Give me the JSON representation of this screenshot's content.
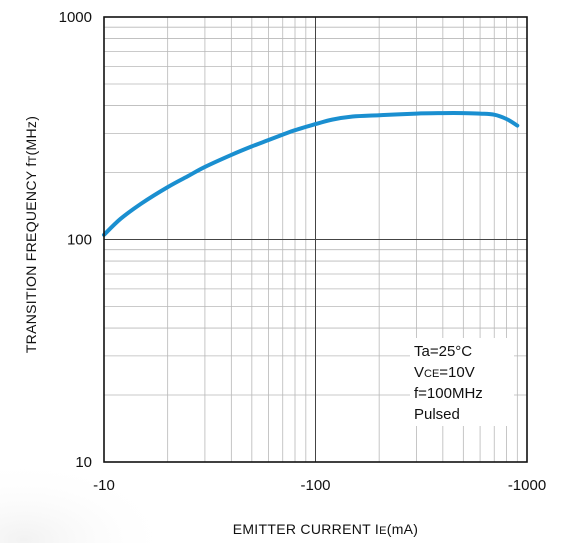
{
  "chart_data": {
    "type": "line",
    "xscale": "log",
    "yscale": "log",
    "xlim": [
      -10,
      -1000
    ],
    "ylim": [
      10,
      1000
    ],
    "x_ticks": [
      "-10",
      "-100",
      "-1000"
    ],
    "y_ticks": [
      "10",
      "100",
      "1000"
    ],
    "xlabel": {
      "main": "EMITTER CURRENT",
      "symbol": "I",
      "symbol_sub": "E",
      "unit": "(mA)"
    },
    "ylabel": {
      "main": "TRANSITION FREQUENCY",
      "symbol": "f",
      "symbol_sub": "T",
      "unit": "(MHz)"
    },
    "grid": true,
    "series": [
      {
        "color": "#1a8fd0",
        "x": [
          -10,
          -12,
          -15,
          -20,
          -25,
          -30,
          -40,
          -50,
          -60,
          -70,
          -80,
          -100,
          -120,
          -150,
          -200,
          -300,
          -400,
          -500,
          -600,
          -700,
          -800,
          -900
        ],
        "y": [
          105,
          124,
          145,
          172,
          193,
          212,
          240,
          262,
          280,
          296,
          310,
          330,
          346,
          357,
          362,
          368,
          370,
          370,
          368,
          364,
          348,
          325
        ]
      }
    ],
    "annotation": [
      {
        "main": "Ta=25°C",
        "sub": ""
      },
      {
        "main": "V",
        "sub": "CE",
        "rest": "=10V"
      },
      {
        "main": "f=100MHz",
        "sub": ""
      },
      {
        "main": "Pulsed",
        "sub": ""
      }
    ]
  }
}
